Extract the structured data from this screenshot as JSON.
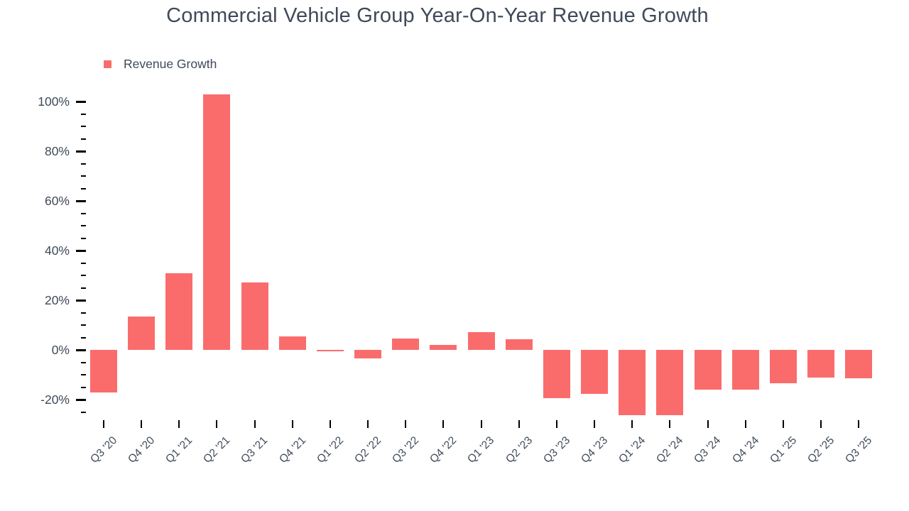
{
  "title": "Commercial Vehicle Group Year-On-Year Revenue Growth",
  "legend": {
    "label": "Revenue Growth"
  },
  "colors": {
    "bar": "#FA6C6C",
    "text": "#3E4A59",
    "tick": "#000000",
    "background": "#FFFFFF"
  },
  "chart_data": {
    "type": "bar",
    "title": "Commercial Vehicle Group Year-On-Year Revenue Growth",
    "series_name": "Revenue Growth",
    "categories": [
      "Q3 '20",
      "Q4 '20",
      "Q1 '21",
      "Q2 '21",
      "Q3 '21",
      "Q4 '21",
      "Q1 '22",
      "Q2 '22",
      "Q3 '22",
      "Q4 '22",
      "Q1 '23",
      "Q2 '23",
      "Q3 '23",
      "Q4 '23",
      "Q1 '24",
      "Q2 '24",
      "Q3 '24",
      "Q4 '24",
      "Q1 '25",
      "Q2 '25",
      "Q3 '25"
    ],
    "values": [
      -17.2,
      13.4,
      30.8,
      102.9,
      27.2,
      5.4,
      -0.7,
      -3.3,
      4.5,
      2.1,
      7.2,
      4.2,
      -19.4,
      -17.7,
      -26.3,
      -26.3,
      -15.9,
      -16.1,
      -13.3,
      -11.2,
      -11.4
    ],
    "unit": "%",
    "xlabel": "",
    "ylabel": "",
    "ylim": [
      -27,
      107
    ],
    "ytick_values": [
      100,
      80,
      60,
      40,
      20,
      0,
      -20
    ],
    "ytick_labels": [
      "100%",
      "80%",
      "60%",
      "40%",
      "20%",
      "0%",
      "-20%"
    ],
    "ytick_minor_step": 5,
    "ytick_minor_range": [
      -25,
      95
    ],
    "grid": false,
    "legend_position": "top-left"
  }
}
